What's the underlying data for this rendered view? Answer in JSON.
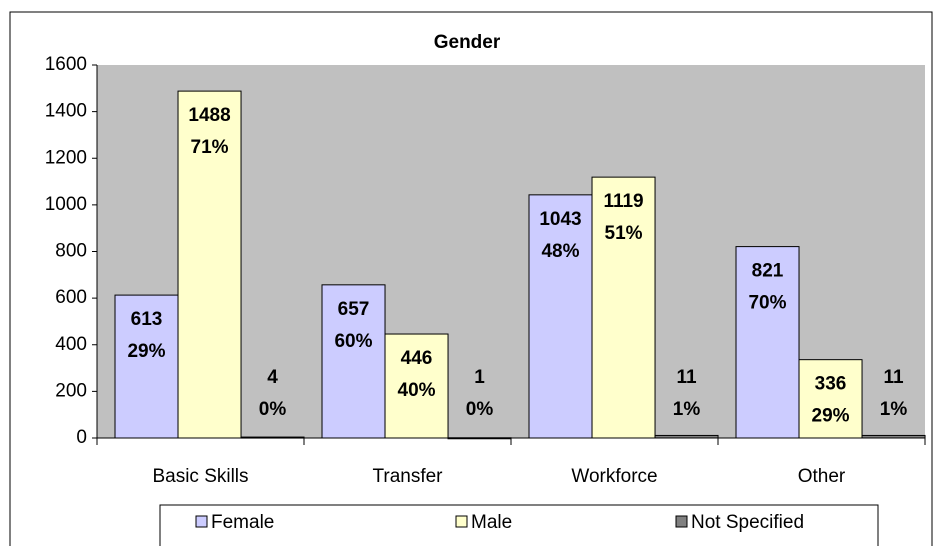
{
  "chart_data": {
    "type": "bar",
    "title": "Gender",
    "categories": [
      "Basic Skills",
      "Transfer",
      "Workforce",
      "Other"
    ],
    "series": [
      {
        "name": "Female",
        "color": "#ccccff",
        "values": [
          613,
          657,
          1043,
          821
        ],
        "percent_labels": [
          "29%",
          "60%",
          "48%",
          "70%"
        ]
      },
      {
        "name": "Male",
        "color": "#ffffcc",
        "values": [
          1488,
          446,
          1119,
          336
        ],
        "percent_labels": [
          "71%",
          "40%",
          "51%",
          "29%"
        ]
      },
      {
        "name": "Not Specified",
        "color": "#808080",
        "values": [
          4,
          1,
          11,
          11
        ],
        "percent_labels": [
          "0%",
          "0%",
          "1%",
          "1%"
        ]
      }
    ],
    "ylim": [
      0,
      1600
    ],
    "yticks": [
      0,
      200,
      400,
      600,
      800,
      1000,
      1200,
      1400,
      1600
    ],
    "grid": false,
    "legend": "bottom",
    "plot_background": "#c0c0c0"
  }
}
